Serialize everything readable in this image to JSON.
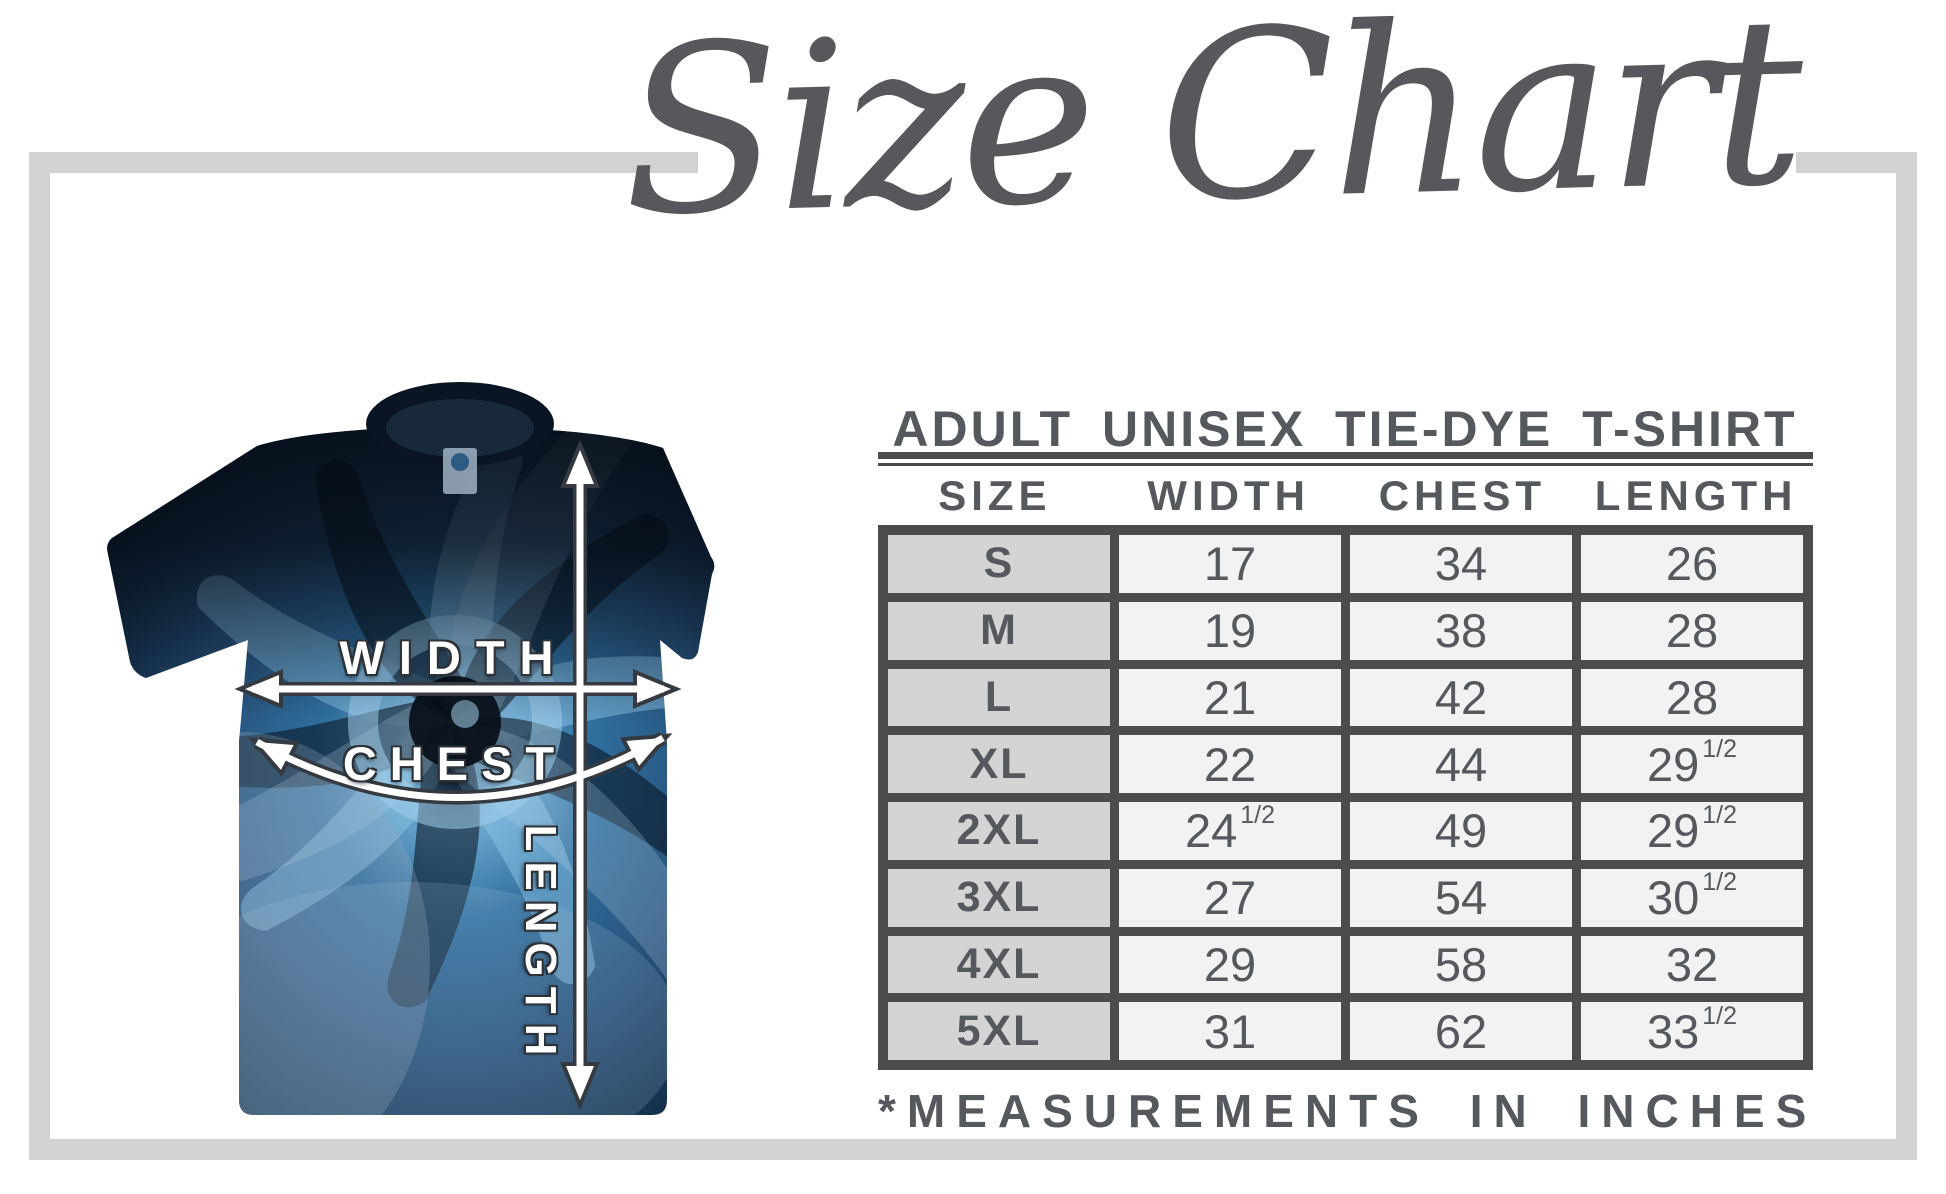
{
  "title": "Size Chart",
  "product_table": {
    "heading": "ADULT UNISEX TIE-DYE T-SHIRT",
    "columns": [
      "SIZE",
      "WIDTH",
      "CHEST",
      "LENGTH"
    ],
    "rows": [
      {
        "size": "S",
        "width": {
          "v": "17"
        },
        "chest": {
          "v": "34"
        },
        "length": {
          "v": "26"
        }
      },
      {
        "size": "M",
        "width": {
          "v": "19"
        },
        "chest": {
          "v": "38"
        },
        "length": {
          "v": "28"
        }
      },
      {
        "size": "L",
        "width": {
          "v": "21"
        },
        "chest": {
          "v": "42"
        },
        "length": {
          "v": "28"
        }
      },
      {
        "size": "XL",
        "width": {
          "v": "22"
        },
        "chest": {
          "v": "44"
        },
        "length": {
          "v": "29",
          "f": "1/2"
        }
      },
      {
        "size": "2XL",
        "width": {
          "v": "24",
          "f": "1/2"
        },
        "chest": {
          "v": "49"
        },
        "length": {
          "v": "29",
          "f": "1/2"
        }
      },
      {
        "size": "3XL",
        "width": {
          "v": "27"
        },
        "chest": {
          "v": "54"
        },
        "length": {
          "v": "30",
          "f": "1/2"
        }
      },
      {
        "size": "4XL",
        "width": {
          "v": "29"
        },
        "chest": {
          "v": "58"
        },
        "length": {
          "v": "32"
        }
      },
      {
        "size": "5XL",
        "width": {
          "v": "31"
        },
        "chest": {
          "v": "62"
        },
        "length": {
          "v": "33",
          "f": "1/2"
        }
      }
    ],
    "footnote": "*MEASUREMENTS IN INCHES"
  },
  "shirt_diagram": {
    "width_label": "WIDTH",
    "chest_label": "CHEST",
    "length_label": "LENGTH"
  },
  "chart_data": {
    "type": "table",
    "title": "Size Chart",
    "subtitle": "ADULT UNISEX TIE-DYE T-SHIRT",
    "columns": [
      "SIZE",
      "WIDTH",
      "CHEST",
      "LENGTH"
    ],
    "rows": [
      [
        "S",
        17,
        34,
        26
      ],
      [
        "M",
        19,
        38,
        28
      ],
      [
        "L",
        21,
        42,
        28
      ],
      [
        "XL",
        22,
        44,
        29.5
      ],
      [
        "2XL",
        24.5,
        49,
        29.5
      ],
      [
        "3XL",
        27,
        54,
        30.5
      ],
      [
        "4XL",
        29,
        58,
        32
      ],
      [
        "5XL",
        31,
        62,
        33.5
      ]
    ],
    "units": "inches",
    "footnote": "*MEASUREMENTS IN INCHES"
  },
  "colors": {
    "text_dark": "#55585c",
    "border_dark": "#4a4c4e",
    "frame_gray": "#d2d2d2",
    "size_cell_bg": "#d4d4d4",
    "value_cell_bg": "#f2f2f2",
    "label_white": "#ffffff",
    "tiedye_dark_navy": "#0d2136",
    "tiedye_blue": "#2f6f9f",
    "tiedye_light_blue": "#8fc3dd"
  }
}
